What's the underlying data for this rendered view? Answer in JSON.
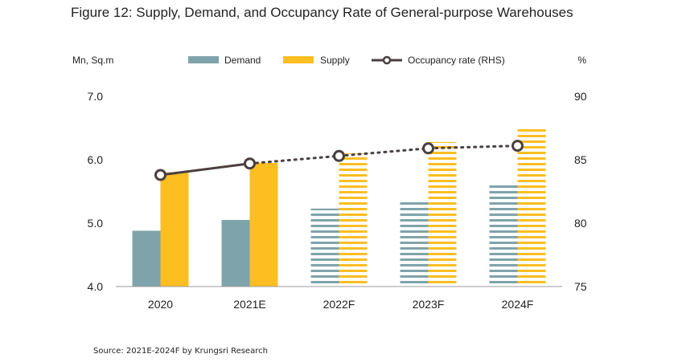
{
  "title": "Figure 12: Supply, Demand, and Occupancy Rate of General-purpose Warehouses",
  "source": "Source: 2021E-2024F by Krungsri Research",
  "chart_data": {
    "type": "bar",
    "categories": [
      "2020",
      "2021E",
      "2022F",
      "2023F",
      "2024F"
    ],
    "series": [
      {
        "name": "Demand",
        "values": [
          4.88,
          5.05,
          5.23,
          5.38,
          5.62
        ],
        "color": "#7FA3AA",
        "hatched": [
          false,
          false,
          true,
          true,
          true
        ]
      },
      {
        "name": "Supply",
        "values": [
          5.8,
          5.95,
          6.1,
          6.28,
          6.5
        ],
        "color": "#FDBE21",
        "hatched": [
          false,
          false,
          true,
          true,
          true
        ]
      },
      {
        "name": "Occupancy rate (RHS)",
        "type": "line",
        "axis": "right",
        "values": [
          83.8,
          84.7,
          85.3,
          85.9,
          86.1
        ],
        "color": "#4A3F3F",
        "projected_from_index": 1
      }
    ],
    "ylabel_left": "Mn, Sq.m",
    "ylabel_right": "%",
    "ylim_left": [
      4.0,
      7.0
    ],
    "yticks_left": [
      "4.0",
      "5.0",
      "6.0",
      "7.0"
    ],
    "ylim_right": [
      75,
      90
    ],
    "yticks_right": [
      "75",
      "80",
      "85",
      "90"
    ],
    "legend_position": "top",
    "grid": false
  }
}
